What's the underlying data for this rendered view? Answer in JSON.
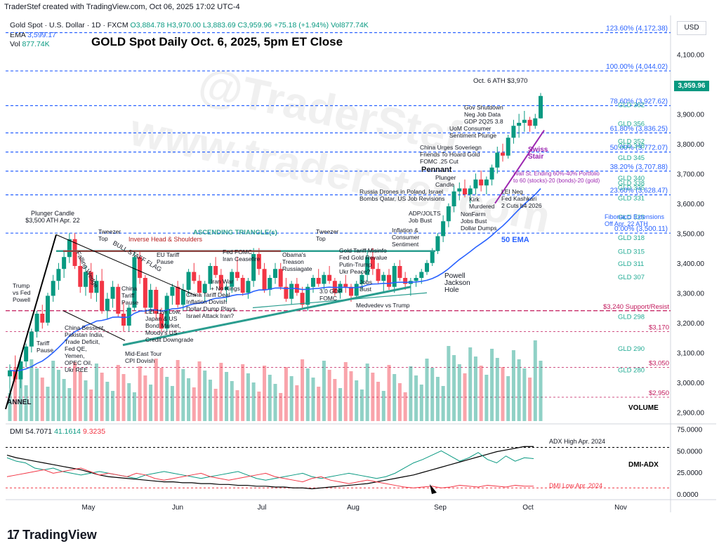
{
  "header": {
    "credit": "TraderStef created with TradingView.com, Oct 06, 2025 17:02 UTC-4",
    "symbol": "Gold Spot · U.S. Dollar · 1D · FXCM",
    "open": "O3,884.78",
    "high": "H3,970.00",
    "low": "L3,883.69",
    "close": "C3,959.96",
    "change": "+75.18 (+1.94%)",
    "volume_inline": "Vol877.74K",
    "ema_label": "EMA",
    "ema_value": "3,599.17",
    "vol_label": "Vol",
    "vol_value": "877.74K"
  },
  "title": "GOLD Spot Daily Oct. 6, 2025, 5pm ET Close",
  "watermarks": [
    "@TraderStef",
    "www.traderstef.com"
  ],
  "currency_button": "USD",
  "last_price_tag": "3,959.96",
  "colors": {
    "up": "#089981",
    "down": "#f23645",
    "ema": "#2962ff",
    "fib": "#2962ff",
    "gld": "#22ab94",
    "support": "#c2185b",
    "trendline": "#2a9d8f",
    "swiss": "#9c27b0"
  },
  "chart_data": {
    "type": "candlestick",
    "price_axis": {
      "range": [
        2870,
        4230
      ],
      "ticks": [
        "2,900.00",
        "3,000.00",
        "3,100.00",
        "3,200.00",
        "3,300.00",
        "3,400.00",
        "3,500.00",
        "3,600.00",
        "3,700.00",
        "3,800.00",
        "3,900.00",
        "4,000.00",
        "4,100.00"
      ]
    },
    "time_axis": {
      "labels": [
        "May",
        "Jun",
        "Jul",
        "Aug",
        "Sep",
        "Oct",
        "Nov"
      ]
    },
    "ema_label": "50 EMA",
    "fib_levels": [
      {
        "label": "123.60% (4,172.38)",
        "value": 4172.38
      },
      {
        "label": "100.00% (4,044.02)",
        "value": 4044.02
      },
      {
        "label": "78.60% (3,927.62)",
        "value": 3927.62
      },
      {
        "label": "61.80% (3,836.25)",
        "value": 3836.25
      },
      {
        "label": "50.00% (3,772.07)",
        "value": 3772.07
      },
      {
        "label": "38.20% (3,707.88)",
        "value": 3707.88
      },
      {
        "label": "23.60% (3,628.47)",
        "value": 3628.47
      },
      {
        "label": "0.00% (3,500.11)",
        "value": 3500.11
      }
    ],
    "gld_levels": [
      {
        "label": "GLD 362",
        "value": 3930
      },
      {
        "label": "GLD 356",
        "value": 3866
      },
      {
        "label": "GLD 352",
        "value": 3808
      },
      {
        "label": "GLD 348",
        "value": 3792
      },
      {
        "label": "GLD 345",
        "value": 3752
      },
      {
        "label": "GLD 340",
        "value": 3684
      },
      {
        "label": "GLD 338",
        "value": 3668
      },
      {
        "label": "GLD 335",
        "value": 3652
      },
      {
        "label": "GLD 331",
        "value": 3617
      },
      {
        "label": "GLD 325",
        "value": 3553
      },
      {
        "label": "GLD 318",
        "value": 3484
      },
      {
        "label": "GLD 315",
        "value": 3438
      },
      {
        "label": "GLD 311",
        "value": 3397
      },
      {
        "label": "GLD 307",
        "value": 3352
      },
      {
        "label": "GLD 298",
        "value": 3220
      },
      {
        "label": "GLD 290",
        "value": 3112
      },
      {
        "label": "GLD 280",
        "value": 3041
      }
    ],
    "support_levels": [
      {
        "label": "$3,240 Support/Resist",
        "value": 3240
      },
      {
        "label": "$3,170",
        "value": 3170
      },
      {
        "label": "$3,050",
        "value": 3050
      },
      {
        "label": "$2,950",
        "value": 2950
      }
    ],
    "candles": [
      [
        3020,
        3060,
        2960,
        3040
      ],
      [
        3040,
        3090,
        3000,
        3010
      ],
      [
        3010,
        3080,
        2980,
        3070
      ],
      [
        3070,
        3130,
        3050,
        3120
      ],
      [
        3120,
        3180,
        3100,
        3170
      ],
      [
        3170,
        3240,
        3150,
        3230
      ],
      [
        3230,
        3260,
        3180,
        3200
      ],
      [
        3200,
        3300,
        3190,
        3290
      ],
      [
        3290,
        3360,
        3270,
        3340
      ],
      [
        3340,
        3400,
        3310,
        3380
      ],
      [
        3380,
        3440,
        3350,
        3420
      ],
      [
        3420,
        3500,
        3400,
        3480
      ],
      [
        3480,
        3500,
        3380,
        3390
      ],
      [
        3390,
        3420,
        3300,
        3320
      ],
      [
        3320,
        3390,
        3290,
        3370
      ],
      [
        3370,
        3400,
        3280,
        3300
      ],
      [
        3300,
        3360,
        3270,
        3340
      ],
      [
        3340,
        3380,
        3230,
        3240
      ],
      [
        3240,
        3300,
        3210,
        3280
      ],
      [
        3280,
        3340,
        3250,
        3320
      ],
      [
        3320,
        3330,
        3220,
        3230
      ],
      [
        3230,
        3270,
        3170,
        3190
      ],
      [
        3190,
        3260,
        3170,
        3250
      ],
      [
        3250,
        3440,
        3240,
        3420
      ],
      [
        3420,
        3440,
        3330,
        3350
      ],
      [
        3350,
        3360,
        3230,
        3250
      ],
      [
        3250,
        3330,
        3230,
        3310
      ],
      [
        3310,
        3320,
        3210,
        3230
      ],
      [
        3230,
        3250,
        3170,
        3180
      ],
      [
        3180,
        3300,
        3170,
        3290
      ],
      [
        3290,
        3330,
        3260,
        3320
      ],
      [
        3320,
        3340,
        3250,
        3260
      ],
      [
        3260,
        3330,
        3240,
        3310
      ],
      [
        3310,
        3380,
        3290,
        3370
      ],
      [
        3370,
        3400,
        3330,
        3340
      ],
      [
        3340,
        3360,
        3290,
        3300
      ],
      [
        3300,
        3340,
        3270,
        3330
      ],
      [
        3330,
        3400,
        3310,
        3390
      ],
      [
        3390,
        3420,
        3350,
        3360
      ],
      [
        3360,
        3380,
        3300,
        3310
      ],
      [
        3310,
        3330,
        3270,
        3320
      ],
      [
        3320,
        3380,
        3300,
        3370
      ],
      [
        3370,
        3420,
        3340,
        3350
      ],
      [
        3350,
        3360,
        3290,
        3300
      ],
      [
        3300,
        3350,
        3280,
        3340
      ],
      [
        3340,
        3450,
        3320,
        3430
      ],
      [
        3430,
        3450,
        3360,
        3380
      ],
      [
        3380,
        3400,
        3300,
        3310
      ],
      [
        3310,
        3360,
        3290,
        3350
      ],
      [
        3350,
        3400,
        3330,
        3380
      ],
      [
        3380,
        3400,
        3310,
        3320
      ],
      [
        3320,
        3350,
        3270,
        3280
      ],
      [
        3280,
        3340,
        3260,
        3330
      ],
      [
        3330,
        3350,
        3290,
        3300
      ],
      [
        3300,
        3320,
        3250,
        3260
      ],
      [
        3260,
        3330,
        3240,
        3320
      ],
      [
        3320,
        3360,
        3300,
        3350
      ],
      [
        3350,
        3380,
        3320,
        3330
      ],
      [
        3330,
        3370,
        3310,
        3360
      ],
      [
        3360,
        3390,
        3330,
        3340
      ],
      [
        3340,
        3350,
        3290,
        3300
      ],
      [
        3300,
        3340,
        3280,
        3330
      ],
      [
        3330,
        3360,
        3300,
        3320
      ],
      [
        3320,
        3330,
        3270,
        3290
      ],
      [
        3290,
        3340,
        3280,
        3330
      ],
      [
        3330,
        3370,
        3310,
        3360
      ],
      [
        3360,
        3440,
        3340,
        3420
      ],
      [
        3420,
        3450,
        3360,
        3380
      ],
      [
        3380,
        3400,
        3330,
        3340
      ],
      [
        3340,
        3370,
        3300,
        3360
      ],
      [
        3360,
        3380,
        3310,
        3320
      ],
      [
        3320,
        3400,
        3300,
        3390
      ],
      [
        3390,
        3410,
        3340,
        3350
      ],
      [
        3350,
        3370,
        3310,
        3330
      ],
      [
        3330,
        3350,
        3290,
        3340
      ],
      [
        3340,
        3360,
        3320,
        3350
      ],
      [
        3350,
        3380,
        3330,
        3370
      ],
      [
        3370,
        3410,
        3360,
        3400
      ],
      [
        3400,
        3450,
        3390,
        3440
      ],
      [
        3440,
        3500,
        3430,
        3490
      ],
      [
        3490,
        3560,
        3470,
        3540
      ],
      [
        3540,
        3600,
        3520,
        3590
      ],
      [
        3590,
        3660,
        3570,
        3640
      ],
      [
        3640,
        3670,
        3610,
        3650
      ],
      [
        3650,
        3680,
        3620,
        3630
      ],
      [
        3630,
        3660,
        3600,
        3650
      ],
      [
        3650,
        3700,
        3630,
        3680
      ],
      [
        3680,
        3710,
        3640,
        3660
      ],
      [
        3660,
        3690,
        3630,
        3680
      ],
      [
        3680,
        3730,
        3660,
        3720
      ],
      [
        3720,
        3790,
        3700,
        3770
      ],
      [
        3770,
        3800,
        3740,
        3760
      ],
      [
        3760,
        3830,
        3750,
        3820
      ],
      [
        3820,
        3880,
        3800,
        3860
      ],
      [
        3860,
        3900,
        3820,
        3870
      ],
      [
        3870,
        3910,
        3840,
        3880
      ],
      [
        3880,
        3890,
        3840,
        3860
      ],
      [
        3860,
        3900,
        3850,
        3885
      ],
      [
        3885,
        3970,
        3884,
        3960
      ]
    ],
    "volume_label": "VOLUME",
    "dmi": {
      "label": "DMI",
      "values": [
        "54.7071",
        "41.1614",
        "9.3235"
      ],
      "axis_ticks": [
        "75.0000",
        "50.0000",
        "25.0000",
        "0.0000"
      ],
      "range": [
        -5,
        78
      ],
      "adx": [
        45,
        42,
        40,
        38,
        36,
        34,
        32,
        30,
        28,
        25,
        22,
        20,
        19,
        18,
        17,
        16,
        15,
        14,
        14,
        13,
        13,
        12,
        12,
        11,
        11,
        10,
        10,
        9,
        9,
        8,
        8,
        7,
        7,
        6,
        7,
        8,
        9,
        10,
        11,
        12,
        14,
        16,
        18,
        20,
        22,
        25,
        28,
        31,
        34,
        37,
        40,
        43,
        46,
        49,
        51,
        53,
        55,
        55
      ],
      "plus_di": [
        42,
        38,
        36,
        30,
        28,
        30,
        26,
        24,
        22,
        24,
        26,
        24,
        22,
        20,
        18,
        22,
        24,
        26,
        24,
        22,
        20,
        18,
        20,
        22,
        24,
        26,
        22,
        18,
        16,
        18,
        20,
        22,
        24,
        20,
        18,
        20,
        22,
        24,
        22,
        20,
        18,
        20,
        24,
        30,
        36,
        40,
        45,
        50,
        44,
        38,
        42,
        48,
        40,
        36,
        44,
        38,
        42,
        41
      ],
      "minus_di": [
        20,
        22,
        24,
        26,
        28,
        24,
        26,
        28,
        30,
        26,
        22,
        24,
        22,
        20,
        24,
        22,
        18,
        16,
        18,
        20,
        22,
        24,
        20,
        18,
        16,
        18,
        20,
        22,
        24,
        20,
        18,
        16,
        14,
        18,
        20,
        16,
        14,
        12,
        14,
        16,
        14,
        12,
        10,
        8,
        7,
        8,
        9,
        7,
        8,
        10,
        9,
        8,
        10,
        9,
        8,
        10,
        9,
        9
      ],
      "annotations": [
        "ADX High Apr. 2024",
        "DMI Low Apr. 2024"
      ],
      "panel_label": "DMI-ADX"
    }
  },
  "annotations": {
    "plunger_top": [
      "Plunger Candle",
      "$3,500 ATH Apr. 22"
    ],
    "tweezer1": [
      "Tweezer",
      "Top"
    ],
    "tweezer2": [
      "Tweezer",
      "Top"
    ],
    "ihs": "Inverse Head & Shoulders",
    "asc_tri": "ASCENDING TRIANGLE(s)",
    "bull_flag": "BULL STAFF FLAG",
    "falling_wedge": "Falling Wedge",
    "trump": [
      "Trump",
      "vs Fed",
      "Powell"
    ],
    "tariff_pause": [
      "Tariff",
      "Pause"
    ],
    "china_bessent": [
      "China Bessent,",
      "Pakistan India,",
      "Trade Deficit,",
      "Fed QE,",
      "Yemen,",
      "OPEC Oil,",
      "Ukr REE"
    ],
    "china_tariff_pause": [
      "China",
      "Tariff",
      "Pause"
    ],
    "eu_tariff": [
      "EU Tariff",
      "Pause"
    ],
    "lei": [
      "LEI 11yr Low,",
      "Japan & US",
      "Bond Market,",
      "Moody's US",
      "Credit Downgrade"
    ],
    "mideast": [
      "Mid-East Tour",
      "CPI Dovish"
    ],
    "china_deal": [
      "China Tariff Deal",
      "Inflation Dovish",
      "Dollar Dump Plays",
      "Israel Attack Iran?"
    ],
    "iran_war": [
      "Iran War",
      "+ No Kings"
    ],
    "fed_fomc": [
      "Fed FOMC",
      "Iran Ceasefire"
    ],
    "obama": [
      "Obama's",
      "Treason",
      "Russiagate"
    ],
    "gdp": [
      "3.0 GDP",
      "FOMC"
    ],
    "gold_tariff": [
      "Gold Tariff Misinfo",
      "Fed Gold Revalue",
      "Putin-Trump",
      "Ukr Peace?"
    ],
    "jobs_bust": [
      "Jobs",
      "Bust"
    ],
    "medvedev": "Medvedev vs Trump",
    "powell": [
      "Powell",
      "Jackson",
      "Hole"
    ],
    "inflation": [
      "Inflation &",
      "Consumer",
      "Sentiment"
    ],
    "adp": [
      "ADP/JOLTS",
      "Job Bust"
    ],
    "russia": [
      "Russia Drones in Poland, Israel",
      "Bombs Qatar, US Job Revisions"
    ],
    "pennant": "Pennant",
    "plunger2": [
      "Plunger",
      "Candle"
    ],
    "kirk": [
      "Kirk",
      "Murdered"
    ],
    "nonfarm": [
      "NonFarm",
      "Jobs Bust",
      "Dollar Dumps"
    ],
    "lei_neg": [
      "LEI Neg",
      "Fed Kashkari",
      "2 Cuts b4 2026"
    ],
    "china_urges": [
      "China Urges Soveriegn",
      "Friends To Hoard Gold",
      "FOMC .25 Cut"
    ],
    "uom": [
      "UoM Consumer",
      "Sentiment Plunge"
    ],
    "gov_shutdown": [
      "Gov Shutdown",
      "Neg Job Data",
      "GDP 2Q25 3.8"
    ],
    "ath": "Oct. 6 ATH $3,970",
    "swiss": [
      "Swiss",
      "Stair"
    ],
    "wallst": [
      "Wall St. Ending 60%-40% Portfolio",
      "to 60 (stocks)-20 (bonds)-20 (gold)"
    ],
    "fib_ext": [
      "Fibonacci Extensions",
      "Off Apr. 22 ATH"
    ],
    "channel": "ANNEL",
    "ema50": "50 EMA"
  },
  "brand": "TradingView"
}
